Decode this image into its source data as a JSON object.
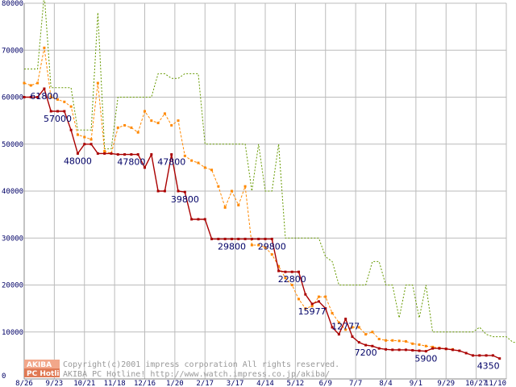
{
  "chart_data": {
    "type": "line",
    "title": "",
    "xlabel": "",
    "ylabel": "",
    "ylim": [
      0,
      80000
    ],
    "yticks": [
      "0",
      "10000",
      "20000",
      "30000",
      "40000",
      "50000",
      "60000",
      "70000",
      "80000"
    ],
    "xticks": [
      "8/26",
      "9/23",
      "10/21",
      "11/18",
      "12/16",
      "1/20",
      "2/17",
      "3/17",
      "4/14",
      "5/12",
      "6/9",
      "7/7",
      "8/4",
      "9/1",
      "9/29",
      "10/27",
      "11/10"
    ],
    "grid": true,
    "colors": {
      "max": "#669900",
      "avg": "#ff8800",
      "min": "#aa0000",
      "grid": "#bbbbbb",
      "tick": "#000066"
    },
    "series": [
      {
        "key": "max",
        "style": "dotted",
        "values": [
          66000,
          66000,
          66000,
          82000,
          62000,
          62000,
          62000,
          62000,
          53000,
          53000,
          53000,
          78000,
          49000,
          49000,
          60000,
          60000,
          60000,
          60000,
          60000,
          60000,
          65000,
          65000,
          64000,
          64000,
          65000,
          65000,
          65000,
          50000,
          50000,
          50000,
          50000,
          50000,
          50000,
          50000,
          40000,
          50000,
          40000,
          40000,
          50000,
          30000,
          30000,
          30000,
          30000,
          30000,
          30000,
          26000,
          25000,
          20000,
          20000,
          20000,
          20000,
          20000,
          25000,
          25000,
          20000,
          20000,
          13000,
          20000,
          20000,
          13000,
          20000,
          10000,
          10000,
          10000,
          10000,
          10000,
          10000,
          10000,
          11000,
          9500,
          9000,
          9000,
          9000,
          7800,
          7800,
          8000
        ]
      },
      {
        "key": "avg",
        "style": "dashed-dots",
        "values": [
          63000,
          62500,
          63000,
          70500,
          60000,
          59500,
          59000,
          58000,
          52000,
          51500,
          51000,
          63000,
          48500,
          48000,
          53500,
          54000,
          53500,
          52500,
          57000,
          55000,
          54500,
          56500,
          54000,
          55000,
          47500,
          46500,
          46000,
          45000,
          44500,
          41000,
          36500,
          40000,
          37000,
          41000,
          28500,
          28500,
          28000,
          26500,
          24000,
          21500,
          20000,
          17000,
          15000,
          15500,
          17500,
          17500,
          14000,
          12000,
          10500,
          11000,
          11000,
          9500,
          10000,
          8500,
          8200,
          8200,
          8100,
          8000,
          7500,
          7300,
          7000,
          6800,
          6600,
          6400,
          6300
        ]
      },
      {
        "key": "min",
        "style": "solid",
        "values": [
          60000,
          60000,
          60000,
          61800,
          57000,
          57000,
          57000,
          53000,
          48000,
          50000,
          50000,
          48000,
          48000,
          48000,
          47800,
          47800,
          47800,
          47800,
          45000,
          47800,
          40000,
          40000,
          47800,
          40000,
          39800,
          34000,
          34000,
          34000,
          29800,
          29800,
          29800,
          29800,
          29800,
          29800,
          29800,
          29800,
          29800,
          29800,
          23000,
          22800,
          22800,
          22800,
          18000,
          15977,
          16500,
          15000,
          11000,
          9500,
          12777,
          9000,
          7800,
          7200,
          7000,
          6500,
          6300,
          6200,
          6200,
          6200,
          6100,
          6000,
          5900,
          6500,
          6500,
          6400,
          6200,
          6000,
          5500,
          5000,
          5000,
          5000,
          5000,
          4350
        ]
      }
    ],
    "annotations": [
      {
        "series": "min",
        "index": 3,
        "value": 61800,
        "label": "61800"
      },
      {
        "series": "min",
        "index": 5,
        "value": 57000,
        "label": "57000"
      },
      {
        "series": "min",
        "index": 8,
        "value": 48000,
        "label": "48000"
      },
      {
        "series": "min",
        "index": 16,
        "value": 47800,
        "label": "47800"
      },
      {
        "series": "min",
        "index": 22,
        "value": 47800,
        "label": "47800"
      },
      {
        "series": "min",
        "index": 24,
        "value": 39800,
        "label": "39800"
      },
      {
        "series": "min",
        "index": 31,
        "value": 29800,
        "label": "29800"
      },
      {
        "series": "min",
        "index": 37,
        "value": 29800,
        "label": "29800"
      },
      {
        "series": "min",
        "index": 40,
        "value": 22800,
        "label": "22800"
      },
      {
        "series": "min",
        "index": 43,
        "value": 15977,
        "label": "15977"
      },
      {
        "series": "min",
        "index": 48,
        "value": 12777,
        "label": "12777"
      },
      {
        "series": "min",
        "index": 51,
        "value": 7200,
        "label": "7200"
      },
      {
        "series": "min",
        "index": 60,
        "value": 5900,
        "label": "5900"
      },
      {
        "series": "min",
        "index": 71,
        "value": 4350,
        "label": "4350"
      }
    ],
    "credit": {
      "logo_top": "AKIBA",
      "logo_bottom": "PC Hotline",
      "line1": "Copyright(c)2001 impress corporation All rights reserved.",
      "line2": "AKIBA PC Hotline!  http://www.watch.impress.co.jp/akiba/"
    }
  }
}
